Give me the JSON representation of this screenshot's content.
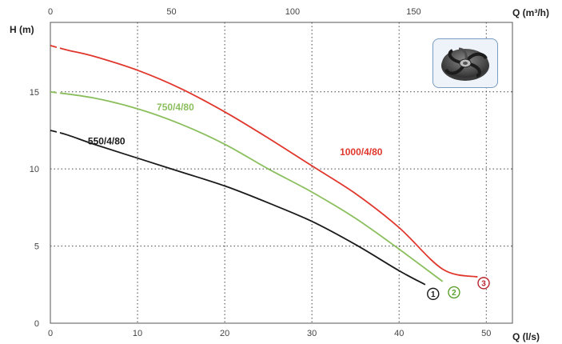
{
  "chart_data": {
    "type": "line",
    "xlabel": "Q (l/s)",
    "x2label": "Q (m³/h)",
    "ylabel": "H (m)",
    "xlim": [
      0,
      53
    ],
    "ylim": [
      0,
      19.5
    ],
    "x2lim": [
      0,
      190.8
    ],
    "xticks": [
      "0",
      "10",
      "20",
      "30",
      "40",
      "50"
    ],
    "x2ticks": [
      "0",
      "50",
      "100",
      "150"
    ],
    "yticks": [
      "0",
      "5",
      "10",
      "15"
    ],
    "grid": true,
    "series": [
      {
        "name": "550/4/80",
        "marker": "1",
        "color": "#1a1a1a",
        "x": [
          0,
          2,
          5,
          10,
          15,
          20,
          25,
          30,
          35,
          40,
          43
        ],
        "y": [
          12.5,
          12.2,
          11.6,
          10.7,
          9.8,
          8.9,
          7.8,
          6.6,
          5.1,
          3.4,
          2.5
        ]
      },
      {
        "name": "750/4/80",
        "marker": "2",
        "color": "#8bbf5e",
        "x": [
          0,
          5,
          10,
          15,
          20,
          25,
          30,
          35,
          40,
          45
        ],
        "y": [
          15.0,
          14.6,
          13.9,
          12.9,
          11.6,
          10.0,
          8.5,
          6.8,
          4.8,
          2.7
        ]
      },
      {
        "name": "1000/4/80",
        "marker": "3",
        "color": "#e0362c",
        "x": [
          0,
          2,
          5,
          10,
          15,
          20,
          25,
          30,
          35,
          40,
          45,
          49
        ],
        "y": [
          18.0,
          17.7,
          17.3,
          16.4,
          15.2,
          13.7,
          12.0,
          10.2,
          8.4,
          6.2,
          3.5,
          3.0
        ]
      }
    ]
  },
  "markers": {
    "1": {
      "text": "1",
      "color": "#1a1a1a"
    },
    "2": {
      "text": "2",
      "color": "#5aa02c"
    },
    "3": {
      "text": "3",
      "color": "#b8242e"
    }
  }
}
